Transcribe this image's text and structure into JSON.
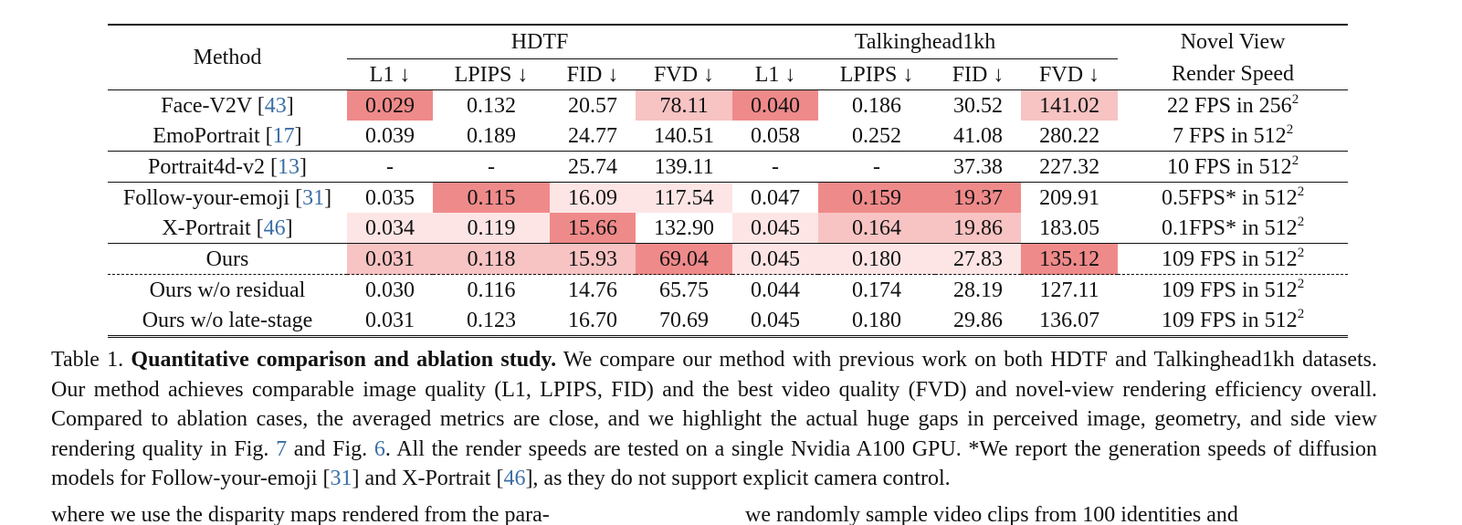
{
  "table": {
    "header": {
      "method": "Method",
      "group1": "HDTF",
      "group2": "Talkinghead1kh",
      "speed_line1": "Novel View",
      "speed_line2": "Render Speed",
      "metrics": [
        "L1 ↓",
        "LPIPS ↓",
        "FID ↓",
        "FVD ↓",
        "L1 ↓",
        "LPIPS ↓",
        "FID ↓",
        "FVD ↓"
      ]
    },
    "rows": [
      {
        "method": "Face-V2V [",
        "ref": "43",
        "close": "]",
        "values": [
          "0.029",
          "0.132",
          "20.57",
          "78.11",
          "0.040",
          "0.186",
          "30.52",
          "141.02"
        ],
        "speed": "22 FPS in 256",
        "sup": "2"
      },
      {
        "method": "EmoPortrait [",
        "ref": "17",
        "close": "]",
        "values": [
          "0.039",
          "0.189",
          "24.77",
          "140.51",
          "0.058",
          "0.252",
          "41.08",
          "280.22"
        ],
        "speed": "7 FPS in 512",
        "sup": "2"
      },
      {
        "method": "Portrait4d-v2 [",
        "ref": "13",
        "close": "]",
        "values": [
          "-",
          "-",
          "25.74",
          "139.11",
          "-",
          "-",
          "37.38",
          "227.32"
        ],
        "speed": "10 FPS in 512",
        "sup": "2"
      },
      {
        "method": "Follow-your-emoji [",
        "ref": "31",
        "close": "]",
        "values": [
          "0.035",
          "0.115",
          "16.09",
          "117.54",
          "0.047",
          "0.159",
          "19.37",
          "209.91"
        ],
        "speed": "0.5FPS* in 512",
        "sup": "2"
      },
      {
        "method": "X-Portrait [",
        "ref": "46",
        "close": "]",
        "values": [
          "0.034",
          "0.119",
          "15.66",
          "132.90",
          "0.045",
          "0.164",
          "19.86",
          "183.05"
        ],
        "speed": "0.1FPS* in 512",
        "sup": "2"
      },
      {
        "method": "Ours",
        "ref": "",
        "close": "",
        "values": [
          "0.031",
          "0.118",
          "15.93",
          "69.04",
          "0.045",
          "0.180",
          "27.83",
          "135.12"
        ],
        "speed": "109 FPS in 512",
        "sup": "2"
      },
      {
        "method": "Ours w/o residual",
        "ref": "",
        "close": "",
        "values": [
          "0.030",
          "0.116",
          "14.76",
          "65.75",
          "0.044",
          "0.174",
          "28.19",
          "127.11"
        ],
        "speed": "109 FPS in 512",
        "sup": "2"
      },
      {
        "method": "Ours w/o late-stage",
        "ref": "",
        "close": "",
        "values": [
          "0.031",
          "0.123",
          "16.70",
          "70.69",
          "0.045",
          "0.180",
          "29.86",
          "136.07"
        ],
        "speed": "109 FPS in 512",
        "sup": "2"
      }
    ],
    "highlight_colors": {
      "best": "#ef8a8a",
      "second": "#f7c3c3",
      "third": "#fde5e5"
    }
  },
  "caption": {
    "label": "Table 1.",
    "title": "Quantitative comparison and ablation study.",
    "text1": "We compare our method with previous work on both HDTF and Talkinghead1kh datasets. Our method achieves comparable image quality (L1, LPIPS, FID) and the best video quality (FVD) and novel-view rendering efficiency overall. Compared to ablation cases, the averaged metrics are close, and we highlight the actual huge gaps in perceived image, geometry, and side view rendering quality in Fig.",
    "fig_a": "7",
    "text2": "and Fig.",
    "fig_b": "6",
    "text3": ". All the render speeds are tested on a single Nvidia A100 GPU. *We report the generation speeds of diffusion models for Follow-your-emoji [",
    "ref_a": "31",
    "text4": "] and X-Portrait [",
    "ref_b": "46",
    "text5": "], as they do not support explicit camera control."
  },
  "body_text": {
    "left_col": "where we use the disparity maps rendered from the para-",
    "right_col": "we randomly sample video clips from 100 identities and"
  }
}
